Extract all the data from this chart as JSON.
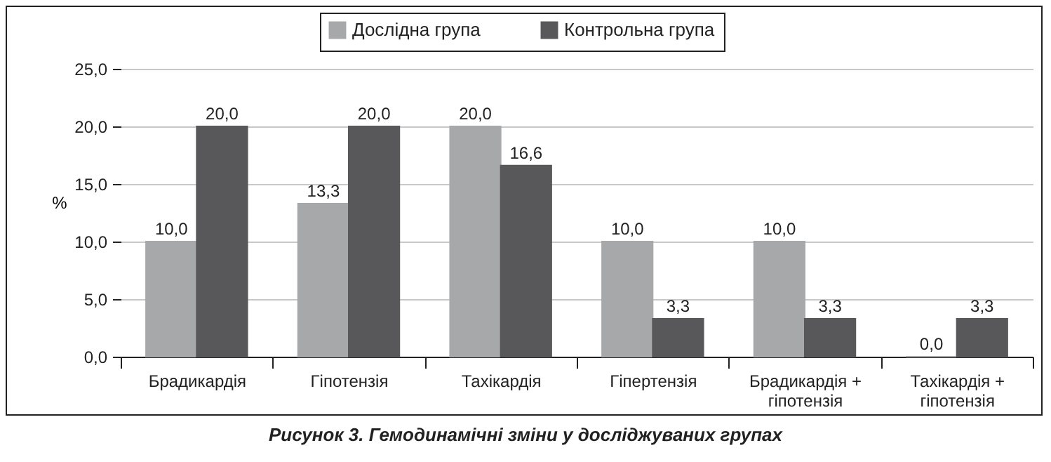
{
  "chart_data": {
    "type": "bar",
    "title": "Рисунок 3. Гемодинамічні зміни у досліджуваних групах",
    "ylabel": "%",
    "categories": [
      "Брадикардія",
      "Гіпотензія",
      "Тахікардія",
      "Гіпертензія",
      "Брадикардія + гіпотензія",
      "Тахікардія + гіпотензія"
    ],
    "series": [
      {
        "name": "Дослідна група",
        "color": "#a7a8aa",
        "values": [
          10,
          13.3,
          20,
          10,
          10,
          0
        ],
        "value_labels": [
          "10,0",
          "13,3",
          "20,0",
          "10,0",
          "10,0",
          "0,0"
        ]
      },
      {
        "name": "Контрольна група",
        "color": "#58585a",
        "values": [
          20,
          20,
          16.6,
          3.3,
          3.3,
          3.3
        ],
        "value_labels": [
          "20,0",
          "20,0",
          "16,6",
          "3,3",
          "3,3",
          "3,3"
        ]
      }
    ],
    "ylim": [
      0,
      25
    ],
    "yticks": [
      {
        "value": 0,
        "label": "0,0"
      },
      {
        "value": 5,
        "label": "5,0"
      },
      {
        "value": 10,
        "label": "10,0"
      },
      {
        "value": 15,
        "label": "15,0"
      },
      {
        "value": 20,
        "label": "20,0"
      },
      {
        "value": 25,
        "label": "25,0"
      }
    ],
    "grid": "y",
    "legend": "top"
  }
}
